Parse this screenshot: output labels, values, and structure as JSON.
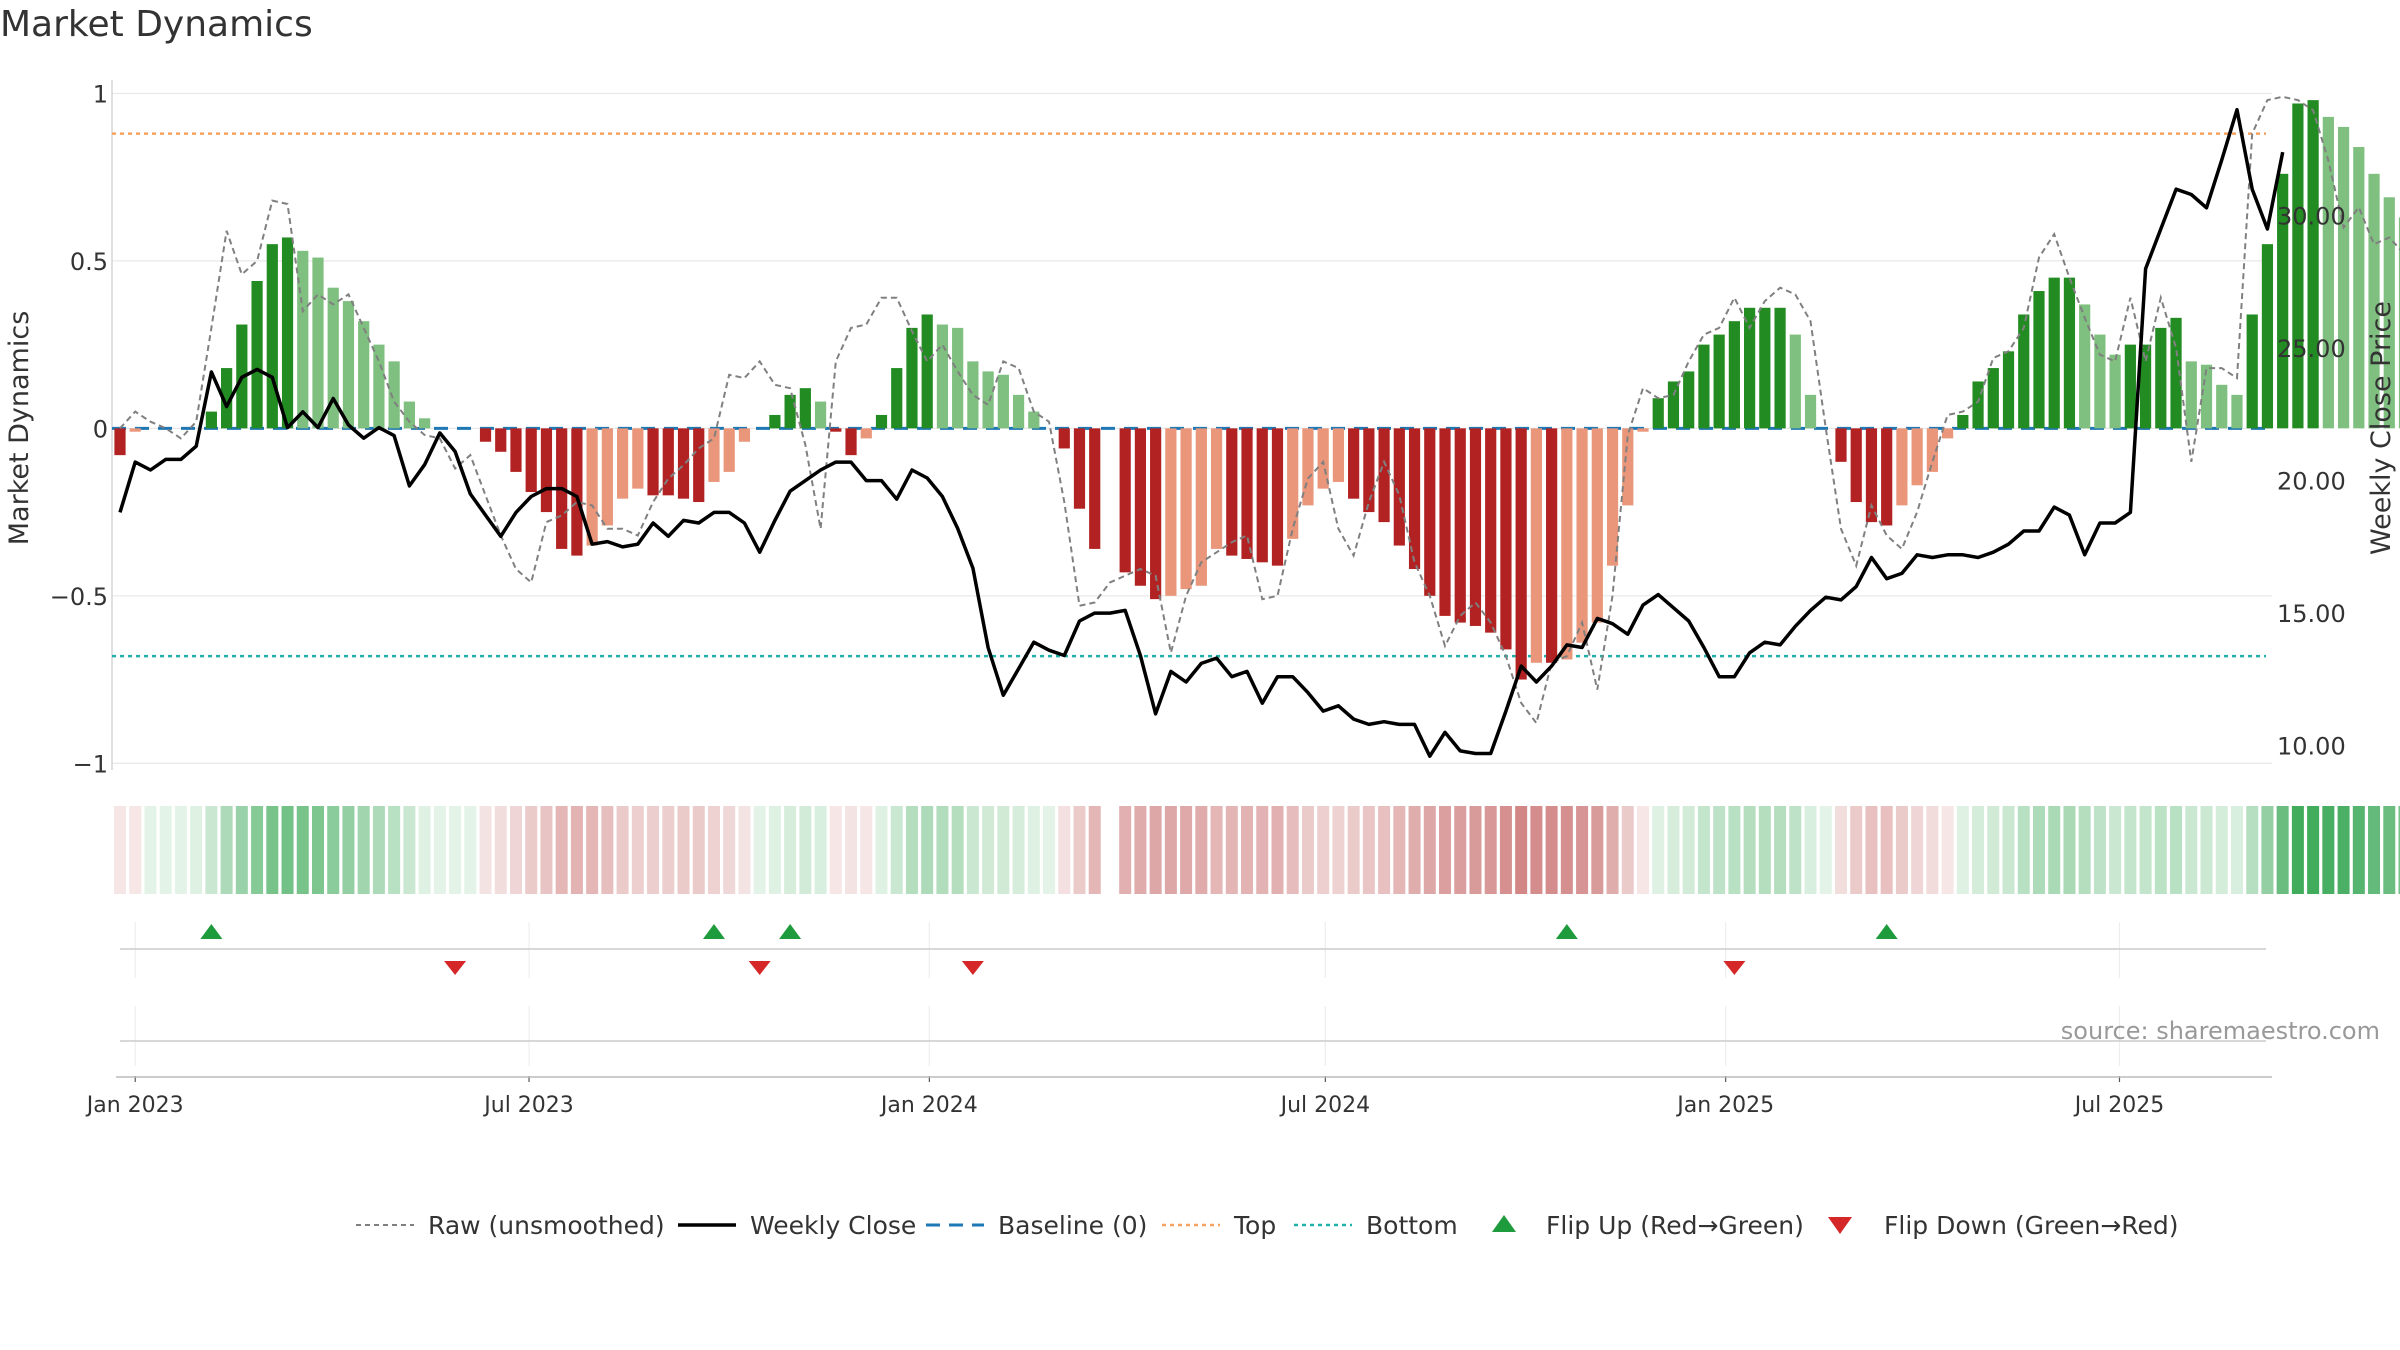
{
  "title": "Market Dynamics",
  "source": "source: sharemaestro.com",
  "colors": {
    "strong_green": "#228B22",
    "weak_green": "#7FBF7F",
    "strong_red": "#B22222",
    "weak_red": "#E9967A",
    "close": "#000000",
    "raw": "#808080",
    "baseline": "#1f77b4",
    "top": "#F4A460",
    "bottom": "#20B2AA",
    "flip_up": "#1e9b3c",
    "flip_down": "#d62728",
    "grid": "#e8e8e8"
  },
  "chart_data": {
    "type": "bar",
    "title": "Market Dynamics",
    "ylabel": "Market Dynamics",
    "y2label": "Weekly Close Price",
    "ylim": [
      -1.05,
      1.07
    ],
    "y2lim": [
      8.7,
      35.5
    ],
    "yticks": [
      {
        "v": 1,
        "t": "1"
      },
      {
        "v": 0.5,
        "t": "0.5"
      },
      {
        "v": 0,
        "t": "0"
      },
      {
        "v": -0.5,
        "t": "−0.5"
      },
      {
        "v": -1,
        "t": "−1"
      }
    ],
    "y2ticks": [
      {
        "v": 30,
        "t": "30.00"
      },
      {
        "v": 25,
        "t": "25.00"
      },
      {
        "v": 20,
        "t": "20.00"
      },
      {
        "v": 15,
        "t": "15.00"
      },
      {
        "v": 10,
        "t": "10.00"
      }
    ],
    "xticks": [
      {
        "date": "2023-01-01",
        "label": "Jan 2023"
      },
      {
        "date": "2023-07-01",
        "label": "Jul 2023"
      },
      {
        "date": "2024-01-01",
        "label": "Jan 2024"
      },
      {
        "date": "2024-07-01",
        "label": "Jul 2024"
      },
      {
        "date": "2025-01-01",
        "label": "Jan 2025"
      },
      {
        "date": "2025-07-01",
        "label": "Jul 2025"
      }
    ],
    "start_week": "2022-12-25",
    "top_level": 0.88,
    "bottom_level": -0.68,
    "baseline": 0,
    "grid": true,
    "legend": [
      {
        "key": "raw",
        "label": "Raw (unsmoothed)"
      },
      {
        "key": "close",
        "label": "Weekly Close"
      },
      {
        "key": "baseline",
        "label": "Baseline (0)"
      },
      {
        "key": "top",
        "label": "Top"
      },
      {
        "key": "bottom",
        "label": "Bottom"
      },
      {
        "key": "flip_up",
        "label": "Flip Up (Red→Green)"
      },
      {
        "key": "flip_down",
        "label": "Flip Down (Green→Red)"
      }
    ],
    "series": [
      {
        "name": "Market Dynamics",
        "values": [
          -0.08,
          -0.01,
          0,
          0,
          0,
          0,
          0.05,
          0.18,
          0.31,
          0.44,
          0.55,
          0.57,
          0.53,
          0.51,
          0.42,
          0.38,
          0.32,
          0.25,
          0.2,
          0.08,
          0.03,
          0,
          0,
          0,
          -0.04,
          -0.07,
          -0.13,
          -0.19,
          -0.25,
          -0.36,
          -0.38,
          -0.35,
          -0.29,
          -0.21,
          -0.18,
          -0.2,
          -0.2,
          -0.21,
          -0.22,
          -0.16,
          -0.13,
          -0.04,
          0,
          0.04,
          0.1,
          0.12,
          0.08,
          -0.01,
          -0.08,
          -0.03,
          0.04,
          0.18,
          0.3,
          0.34,
          0.31,
          0.3,
          0.2,
          0.17,
          0.16,
          0.1,
          0.05,
          0,
          -0.06,
          -0.24,
          -0.36,
          0,
          -0.43,
          -0.47,
          -0.51,
          -0.5,
          -0.48,
          -0.47,
          -0.36,
          -0.38,
          -0.39,
          -0.4,
          -0.41,
          -0.33,
          -0.23,
          -0.18,
          -0.16,
          -0.21,
          -0.25,
          -0.28,
          -0.35,
          -0.42,
          -0.5,
          -0.56,
          -0.58,
          -0.59,
          -0.61,
          -0.66,
          -0.75,
          -0.7,
          -0.7,
          -0.69,
          -0.64,
          -0.58,
          -0.41,
          -0.23,
          -0.01,
          0.09,
          0.14,
          0.17,
          0.25,
          0.28,
          0.32,
          0.36,
          0.36,
          0.36,
          0.28,
          0.1,
          0,
          -0.1,
          -0.22,
          -0.28,
          -0.29,
          -0.23,
          -0.17,
          -0.13,
          -0.03,
          0.04,
          0.14,
          0.18,
          0.23,
          0.34,
          0.41,
          0.45,
          0.45,
          0.37,
          0.28,
          0.22,
          0.25,
          0.25,
          0.3,
          0.33,
          0.2,
          0.19,
          0.13,
          0.1,
          0.34,
          0.55,
          0.76,
          0.97,
          0.98,
          0.93,
          0.9,
          0.84,
          0.76,
          0.69,
          0.63
        ]
      },
      {
        "name": "Raw (unsmoothed)",
        "values": [
          0,
          0.05,
          0.02,
          0,
          -0.03,
          0.02,
          0.3,
          0.59,
          0.46,
          0.5,
          0.68,
          0.67,
          0.35,
          0.4,
          0.37,
          0.4,
          0.3,
          0.2,
          0.08,
          0.02,
          -0.02,
          -0.03,
          -0.12,
          -0.08,
          -0.2,
          -0.32,
          -0.42,
          -0.46,
          -0.28,
          -0.26,
          -0.22,
          -0.23,
          -0.3,
          -0.3,
          -0.32,
          -0.22,
          -0.15,
          -0.11,
          -0.06,
          -0.03,
          0.16,
          0.15,
          0.2,
          0.13,
          0.12,
          -0.05,
          -0.3,
          0.2,
          0.3,
          0.31,
          0.39,
          0.39,
          0.29,
          0.2,
          0.25,
          0.17,
          0.1,
          0.07,
          0.2,
          0.18,
          0.05,
          0.02,
          -0.22,
          -0.53,
          -0.52,
          -0.46,
          -0.44,
          -0.42,
          -0.44,
          -0.67,
          -0.5,
          -0.4,
          -0.37,
          -0.34,
          -0.32,
          -0.51,
          -0.5,
          -0.3,
          -0.15,
          -0.1,
          -0.3,
          -0.38,
          -0.22,
          -0.1,
          -0.2,
          -0.4,
          -0.5,
          -0.65,
          -0.56,
          -0.52,
          -0.58,
          -0.68,
          -0.82,
          -0.88,
          -0.7,
          -0.68,
          -0.58,
          -0.78,
          -0.5,
          -0.02,
          0.12,
          0.09,
          0.1,
          0.2,
          0.28,
          0.3,
          0.39,
          0.3,
          0.38,
          0.42,
          0.4,
          0.32,
          0,
          -0.3,
          -0.41,
          -0.23,
          -0.32,
          -0.36,
          -0.25,
          -0.1,
          0.04,
          0.05,
          0.08,
          0.21,
          0.23,
          0.3,
          0.51,
          0.58,
          0.45,
          0.33,
          0.22,
          0.2,
          0.39,
          0.2,
          0.39,
          0.24,
          -0.1,
          0.18,
          0.18,
          0.15,
          0.88,
          0.98,
          0.99,
          0.98,
          0.95,
          0.8,
          0.6,
          0.66,
          0.55,
          0.57,
          0.52
        ]
      },
      {
        "name": "Weekly Close",
        "values": [
          18.8,
          20.7,
          20.4,
          20.8,
          20.8,
          21.3,
          24.1,
          22.8,
          23.9,
          24.2,
          23.9,
          22,
          22.6,
          22,
          23.1,
          22.1,
          21.6,
          22,
          21.7,
          19.8,
          20.6,
          21.8,
          21.1,
          19.5,
          18.7,
          17.9,
          18.8,
          19.4,
          19.7,
          19.7,
          19.4,
          17.6,
          17.7,
          17.5,
          17.6,
          18.4,
          17.9,
          18.5,
          18.4,
          18.8,
          18.8,
          18.4,
          17.3,
          18.5,
          19.6,
          20,
          20.4,
          20.7,
          20.7,
          20,
          20,
          19.3,
          20.4,
          20.1,
          19.4,
          18.2,
          16.7,
          13.7,
          11.9,
          12.9,
          13.9,
          13.6,
          13.4,
          14.7,
          15,
          15,
          15.1,
          13.4,
          11.2,
          12.8,
          12.4,
          13.1,
          13.3,
          12.6,
          12.8,
          11.6,
          12.6,
          12.6,
          12,
          11.3,
          11.5,
          11,
          10.8,
          10.9,
          10.8,
          10.8,
          9.6,
          10.5,
          9.8,
          9.7,
          9.7,
          11.3,
          13,
          12.4,
          13,
          13.8,
          13.7,
          14.8,
          14.6,
          14.2,
          15.3,
          15.7,
          15.2,
          14.7,
          13.7,
          12.6,
          12.6,
          13.5,
          13.9,
          13.8,
          14.5,
          15.1,
          15.6,
          15.5,
          16,
          17.1,
          16.3,
          16.5,
          17.2,
          17.1,
          17.2,
          17.2,
          17.1,
          17.3,
          17.6,
          18.1,
          18.1,
          19,
          18.7,
          17.2,
          18.4,
          18.4,
          18.8,
          28,
          29.5,
          31,
          30.8,
          30.3,
          32.1,
          34,
          31,
          29.5,
          32.4
        ]
      }
    ],
    "momentum_strength": [
      0.1,
      0.1,
      0.1,
      0.1,
      0.1,
      0.12,
      0.2,
      0.3,
      0.38,
      0.45,
      0.5,
      0.52,
      0.5,
      0.48,
      0.43,
      0.4,
      0.35,
      0.3,
      0.26,
      0.2,
      0.12,
      0.1,
      0.1,
      0.1,
      0.12,
      0.14,
      0.18,
      0.22,
      0.25,
      0.3,
      0.32,
      0.3,
      0.27,
      0.22,
      0.2,
      0.21,
      0.21,
      0.22,
      0.22,
      0.19,
      0.17,
      0.12,
      0.1,
      0.12,
      0.15,
      0.17,
      0.14,
      0.1,
      0.12,
      0.1,
      0.12,
      0.2,
      0.28,
      0.3,
      0.29,
      0.28,
      0.2,
      0.18,
      0.18,
      0.15,
      0.12,
      0.1,
      0.13,
      0.22,
      0.3,
      0,
      0.33,
      0.35,
      0.37,
      0.37,
      0.36,
      0.35,
      0.3,
      0.31,
      0.32,
      0.32,
      0.33,
      0.28,
      0.22,
      0.2,
      0.19,
      0.22,
      0.24,
      0.26,
      0.3,
      0.34,
      0.37,
      0.4,
      0.41,
      0.42,
      0.43,
      0.46,
      0.5,
      0.48,
      0.48,
      0.47,
      0.45,
      0.42,
      0.34,
      0.22,
      0.1,
      0.12,
      0.15,
      0.17,
      0.22,
      0.24,
      0.26,
      0.28,
      0.28,
      0.28,
      0.24,
      0.14,
      0.1,
      0.14,
      0.22,
      0.26,
      0.26,
      0.22,
      0.18,
      0.15,
      0.1,
      0.12,
      0.16,
      0.18,
      0.2,
      0.26,
      0.3,
      0.32,
      0.32,
      0.28,
      0.24,
      0.2,
      0.22,
      0.22,
      0.25,
      0.26,
      0.2,
      0.19,
      0.16,
      0.14,
      0.27,
      0.4,
      0.55,
      0.7,
      0.7,
      0.68,
      0.66,
      0.63,
      0.58,
      0.55,
      0.52
    ],
    "flips_up": [
      "2023-02-05",
      "2023-09-24",
      "2023-10-29",
      "2024-10-20",
      "2025-03-16"
    ],
    "flips_down": [
      "2023-05-28",
      "2023-10-15",
      "2024-01-21",
      "2025-01-05"
    ]
  }
}
